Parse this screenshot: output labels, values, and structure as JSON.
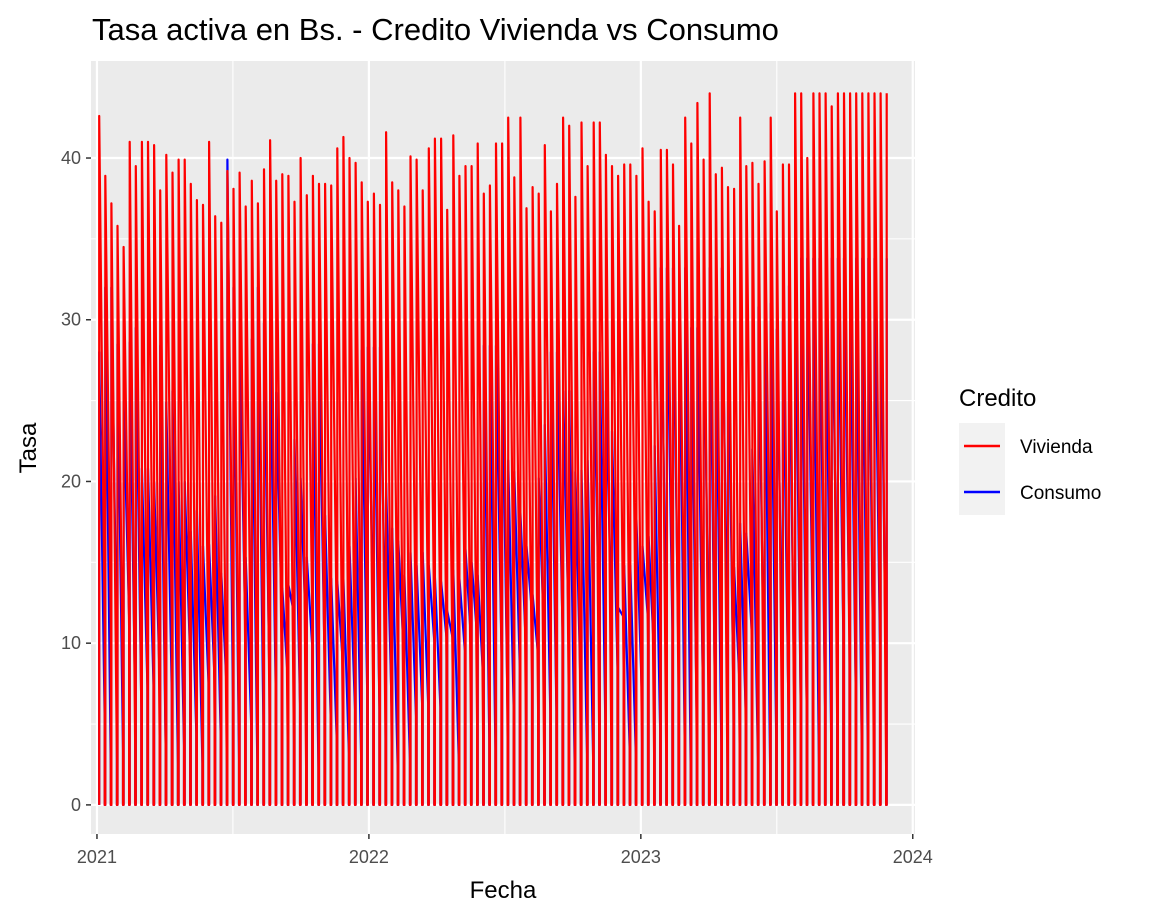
{
  "chart_data": {
    "type": "line",
    "title": "Tasa activa en Bs. - Credito Vivienda vs Consumo",
    "xlabel": "Fecha",
    "ylabel": "Tasa",
    "x_ticks": [
      "2021",
      "2022",
      "2023",
      "2024"
    ],
    "y_ticks": [
      "0",
      "10",
      "20",
      "30",
      "40"
    ],
    "xlim": [
      "2020-12-24",
      "2024-01-04"
    ],
    "ylim": [
      -1.8,
      46
    ],
    "grid": true,
    "legend": {
      "title": "Credito",
      "placement": "right"
    },
    "series": [
      {
        "name": "Vivienda",
        "color": "#ff0000",
        "peaks": [
          42.6,
          38.9,
          37.2,
          35.8,
          34.5,
          41.0,
          39.5,
          41.0,
          41.0,
          40.8,
          38.0,
          40.2,
          39.1,
          39.9,
          39.9,
          38.4,
          37.4,
          37.1,
          41.0,
          36.4,
          36.0,
          39.2,
          38.1,
          39.1,
          37.0,
          38.6,
          37.2,
          39.3,
          41.1,
          38.6,
          39.0,
          38.9,
          37.3,
          40.0,
          37.7,
          38.9,
          38.4,
          38.4,
          38.3,
          40.6,
          41.3,
          40.0,
          39.7,
          38.5,
          37.3,
          37.8,
          37.1,
          41.6,
          38.5,
          38.0,
          37.0,
          40.1,
          39.9,
          38.0,
          40.6,
          41.2,
          41.2,
          36.8,
          41.4,
          38.9,
          39.5,
          39.5,
          40.9,
          37.8,
          38.3,
          40.9,
          40.9,
          42.5,
          38.8,
          42.5,
          36.9,
          38.2,
          37.8,
          40.8,
          36.7,
          38.4,
          42.5,
          42.0,
          37.6,
          42.2,
          39.5,
          42.2,
          42.2,
          40.2,
          39.5,
          38.9,
          39.6,
          39.6,
          38.9,
          40.6,
          37.3,
          36.7,
          40.5,
          40.5,
          39.6,
          35.8,
          42.5,
          40.9,
          43.4,
          39.9,
          44.0,
          39.0,
          39.4,
          38.2,
          38.1,
          42.5,
          39.5,
          39.7,
          38.4,
          39.8,
          42.5,
          36.7,
          39.6,
          39.6,
          44.0,
          44.0,
          40.0,
          44.0,
          44.0,
          44.0,
          43.2,
          44.0,
          44.0,
          44.0,
          44.0,
          44.0,
          44.0,
          44.0,
          44.0,
          44.0
        ]
      },
      {
        "name": "Consumo",
        "color": "#0000ff",
        "peaks": [
          28.0,
          32.0,
          32.0,
          28.5,
          25.0,
          28.6,
          29.5,
          20.8,
          20.8,
          20.0,
          28.4,
          24.9,
          25.6,
          20.0,
          20.0,
          16.9,
          18.2,
          16.0,
          16.1,
          19.1,
          14.3,
          39.9,
          32.0,
          29.6,
          15.3,
          28.8,
          32.0,
          29.8,
          29.8,
          25.5,
          13.4,
          13.6,
          22.6,
          20.2,
          15.3,
          28.5,
          28.5,
          17.9,
          14.0,
          13.8,
          14.0,
          16.0,
          20.2,
          28.1,
          28.3,
          28.3,
          28.3,
          19.9,
          17.1,
          16.3,
          14.2,
          15.6,
          14.8,
          15.6,
          14.8,
          14.1,
          13.8,
          12.0,
          14.5,
          14.0,
          15.8,
          15.0,
          14.2,
          28.4,
          28.4,
          28.4,
          28.4,
          21.3,
          20.6,
          18.1,
          16.0,
          13.0,
          20.2,
          23.5,
          28.0,
          28.0,
          25.6,
          25.6,
          20.6,
          20.7,
          21.3,
          28.0,
          28.0,
          25.6,
          23.1,
          12.2,
          14.8,
          14.8,
          17.7,
          16.0,
          16.6,
          22.2,
          33.2,
          33.2,
          33.2,
          33.2,
          33.2,
          29.5,
          29.5,
          33.2,
          33.2,
          30.2,
          33.2,
          30.6,
          14.7,
          17.4,
          16.8,
          22.0,
          30.8,
          31.0,
          31.0,
          29.4,
          29.9,
          32.1,
          33.8,
          33.8,
          33.8,
          33.8,
          33.8,
          33.8,
          33.8,
          33.8,
          33.8,
          33.8,
          33.8,
          33.8,
          33.8,
          33.8,
          33.8,
          33.8
        ]
      }
    ]
  }
}
